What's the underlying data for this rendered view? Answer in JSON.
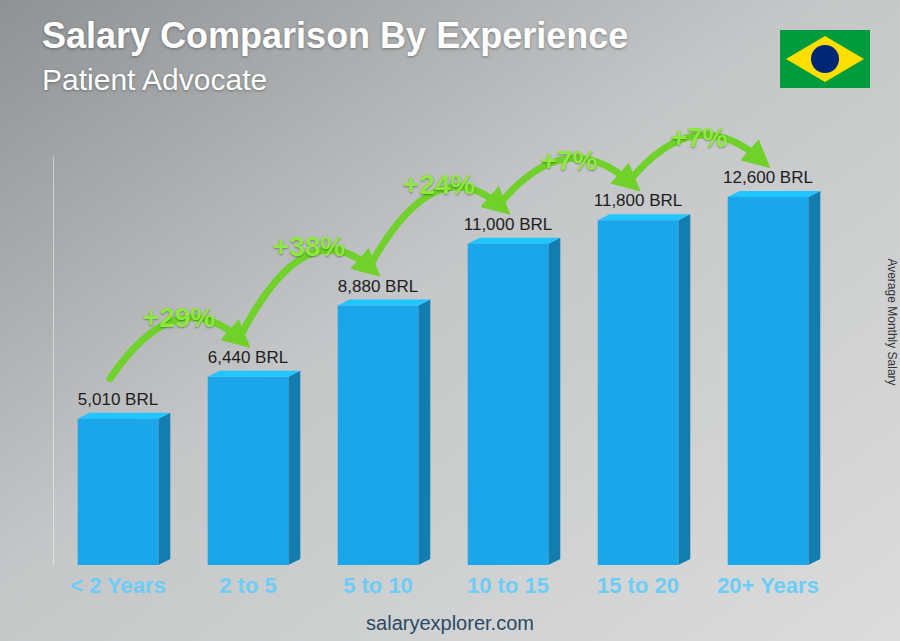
{
  "chart_data": {
    "type": "bar",
    "title": "Salary Comparison By Experience",
    "subtitle": "Patient Advocate",
    "y_label": "Average Monthly Salary",
    "categories": [
      "< 2 Years",
      "2 to 5",
      "5 to 10",
      "10 to 15",
      "15 to 20",
      "20+ Years"
    ],
    "values": [
      5010,
      6440,
      8880,
      11000,
      11800,
      12600
    ],
    "value_labels": [
      "5,010 BRL",
      "6,440 BRL",
      "8,880 BRL",
      "11,000 BRL",
      "11,800 BRL",
      "12,600 BRL"
    ],
    "annotations": [
      "+29%",
      "+38%",
      "+24%",
      "+7%",
      "+7%"
    ],
    "source": "salaryexplorer.com",
    "color": "#1ba6ea",
    "ylim": [
      0,
      14000
    ],
    "data_labels": true,
    "tick_labels": "x",
    "grid": false
  }
}
